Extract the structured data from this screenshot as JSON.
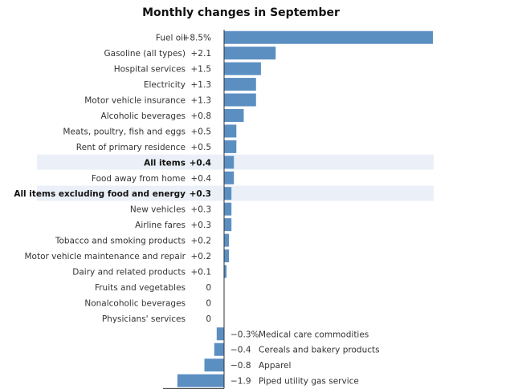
{
  "chart_data": {
    "type": "bar",
    "orientation": "horizontal",
    "title": "Monthly changes in September",
    "xlabel": "",
    "ylabel": "",
    "unit": "%",
    "bar_color": "#5b8fc2",
    "highlight_color": "#ebf0f8",
    "axis_color": "#333333",
    "categories": [
      "Fuel oil",
      "Gasoline (all types)",
      "Hospital services",
      "Electricity",
      "Motor vehicle insurance",
      "Alcoholic beverages",
      "Meats, poultry, fish and eggs",
      "Rent of primary residence",
      "All items",
      "Food away from home",
      "All items excluding food and energy",
      "New vehicles",
      "Airline fares",
      "Tobacco and smoking products",
      "Motor vehicle maintenance and repair",
      "Dairy and related products",
      "Fruits and vegetables",
      "Nonalcoholic beverages",
      "Physicians' services",
      "Medical care commodities",
      "Cereals and bakery products",
      "Apparel",
      "Piped utility gas service"
    ],
    "values": [
      8.5,
      2.1,
      1.5,
      1.3,
      1.3,
      0.8,
      0.5,
      0.5,
      0.4,
      0.4,
      0.3,
      0.3,
      0.3,
      0.2,
      0.2,
      0.1,
      0,
      0,
      0,
      -0.3,
      -0.4,
      -0.8,
      -1.9
    ],
    "value_labels": [
      "+8.5%",
      "+2.1",
      "+1.5",
      "+1.3",
      "+1.3",
      "+0.8",
      "+0.5",
      "+0.5",
      "+0.4",
      "+0.4",
      "+0.3",
      "+0.3",
      "+0.3",
      "+0.2",
      "+0.2",
      "+0.1",
      "0",
      "0",
      "0",
      "−0.3%",
      "−0.4",
      "−0.8",
      "−1.9"
    ],
    "highlighted": [
      "All items",
      "All items excluding food and energy"
    ]
  }
}
